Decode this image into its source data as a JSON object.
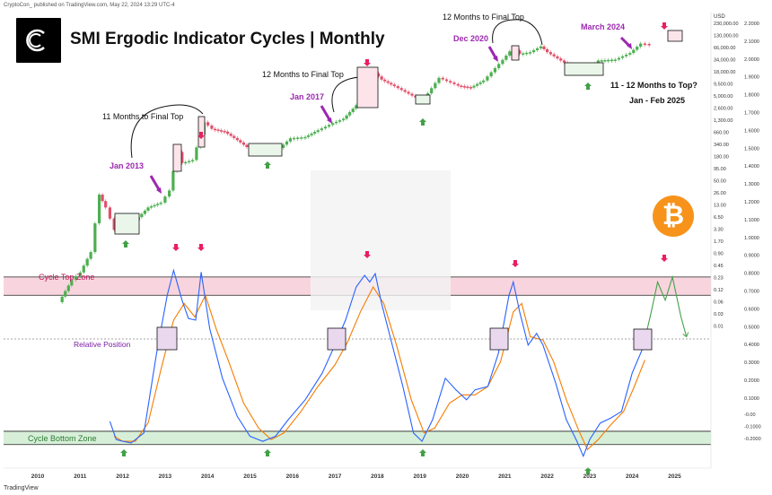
{
  "header_text": "CryptoCon_ published on TradingView.com, May 22, 2024 13:29 UTC-4",
  "footer_text": "TradingView",
  "icons": [
    "cryptocon-logo-icon",
    "bitcoin-icon",
    "cycle-arrow-icon"
  ],
  "colors": {
    "up": "#4caf50",
    "down": "#e0506b",
    "fast": "#2962ff",
    "slow": "#f57c00",
    "projection": "#43a047",
    "top_zone": "#f8d5de",
    "bottom_zone": "#d7efd9",
    "annotation": "#9c27b0",
    "top_arrow": "#e91e63",
    "bottom_arrow": "#43a047"
  },
  "chart_data": {
    "type": "line",
    "title": "SMI Ergodic Indicator Cycles | Monthly",
    "x_ticks": [
      "2010",
      "2011",
      "2012",
      "2013",
      "2014",
      "2015",
      "2016",
      "2017",
      "2018",
      "2019",
      "2020",
      "2021",
      "2022",
      "2023",
      "2024",
      "2025"
    ],
    "price_axis_label": "USD",
    "price_scale": "log",
    "price_ticks": [
      "230,000.00",
      "130,000.00",
      "66,000.00",
      "34,000.00",
      "18,000.00",
      "9,500.00",
      "5,000.00",
      "2,600.00",
      "1,300.00",
      "660.00",
      "340.00",
      "180.00",
      "95.00",
      "50.00",
      "26.00",
      "13.00",
      "6.50",
      "3.30",
      "1.70",
      "0.90",
      "0.45",
      "0.23",
      "0.12",
      "0.06",
      "0.03",
      "0.01"
    ],
    "indicator_ticks": [
      "2.2000",
      "2.1000",
      "2.0000",
      "1.9000",
      "1.8000",
      "1.7000",
      "1.6000",
      "1.5000",
      "1.4000",
      "1.3000",
      "1.2000",
      "1.1000",
      "1.0000",
      "0.9000",
      "0.8000",
      "0.7000",
      "0.6000",
      "0.5000",
      "0.4000",
      "0.3000",
      "0.2000",
      "0.1000",
      "-0.00",
      "-0.1000",
      "-0.2000"
    ],
    "series": [
      {
        "name": "Price",
        "points": [
          [
            2010.5,
            0.06
          ],
          [
            2010.8,
            0.2
          ],
          [
            2011.0,
            0.3
          ],
          [
            2011.25,
            0.9
          ],
          [
            2011.45,
            20
          ],
          [
            2011.6,
            10
          ],
          [
            2011.8,
            3
          ],
          [
            2012.0,
            5
          ],
          [
            2012.3,
            5
          ],
          [
            2012.6,
            10
          ],
          [
            2012.9,
            13
          ],
          [
            2013.1,
            25
          ],
          [
            2013.28,
            200
          ],
          [
            2013.4,
            110
          ],
          [
            2013.65,
            130
          ],
          [
            2013.92,
            1000
          ],
          [
            2014.1,
            700
          ],
          [
            2014.4,
            600
          ],
          [
            2014.7,
            380
          ],
          [
            2015.0,
            230
          ],
          [
            2015.4,
            240
          ],
          [
            2015.7,
            250
          ],
          [
            2015.95,
            420
          ],
          [
            2016.3,
            450
          ],
          [
            2016.6,
            650
          ],
          [
            2016.95,
            950
          ],
          [
            2017.2,
            1200
          ],
          [
            2017.5,
            2500
          ],
          [
            2017.75,
            6000
          ],
          [
            2017.95,
            14000
          ],
          [
            2018.1,
            10000
          ],
          [
            2018.4,
            7000
          ],
          [
            2018.9,
            3800
          ],
          [
            2019.1,
            3600
          ],
          [
            2019.45,
            11000
          ],
          [
            2019.9,
            7200
          ],
          [
            2020.2,
            6500
          ],
          [
            2020.5,
            9500
          ],
          [
            2020.95,
            29000
          ],
          [
            2021.2,
            58000
          ],
          [
            2021.35,
            40000
          ],
          [
            2021.6,
            44000
          ],
          [
            2021.85,
            60000
          ],
          [
            2022.0,
            44000
          ],
          [
            2022.4,
            25000
          ],
          [
            2022.7,
            19000
          ],
          [
            2022.95,
            16500
          ],
          [
            2023.2,
            28000
          ],
          [
            2023.6,
            29500
          ],
          [
            2023.95,
            42000
          ],
          [
            2024.2,
            70000
          ],
          [
            2024.4,
            67000
          ]
        ]
      },
      {
        "name": "SMI fast",
        "points": [
          [
            2011.7,
            -0.01
          ],
          [
            2011.85,
            -0.12
          ],
          [
            2012.0,
            -0.13
          ],
          [
            2012.2,
            -0.14
          ],
          [
            2012.5,
            -0.08
          ],
          [
            2012.8,
            0.4
          ],
          [
            2013.05,
            0.75
          ],
          [
            2013.2,
            0.9
          ],
          [
            2013.4,
            0.72
          ],
          [
            2013.55,
            0.61
          ],
          [
            2013.72,
            0.6
          ],
          [
            2013.85,
            0.89
          ],
          [
            2014.05,
            0.55
          ],
          [
            2014.35,
            0.25
          ],
          [
            2014.7,
            0.02
          ],
          [
            2015.0,
            -0.1
          ],
          [
            2015.3,
            -0.13
          ],
          [
            2015.6,
            -0.1
          ],
          [
            2015.9,
            0.0
          ],
          [
            2016.3,
            0.12
          ],
          [
            2016.7,
            0.28
          ],
          [
            2017.0,
            0.45
          ],
          [
            2017.25,
            0.6
          ],
          [
            2017.5,
            0.8
          ],
          [
            2017.7,
            0.87
          ],
          [
            2017.82,
            0.83
          ],
          [
            2017.95,
            0.88
          ],
          [
            2018.1,
            0.7
          ],
          [
            2018.3,
            0.5
          ],
          [
            2018.6,
            0.2
          ],
          [
            2018.85,
            -0.08
          ],
          [
            2019.05,
            -0.13
          ],
          [
            2019.3,
            0.0
          ],
          [
            2019.6,
            0.25
          ],
          [
            2019.85,
            0.18
          ],
          [
            2020.1,
            0.12
          ],
          [
            2020.3,
            0.18
          ],
          [
            2020.6,
            0.2
          ],
          [
            2020.85,
            0.4
          ],
          [
            2021.1,
            0.75
          ],
          [
            2021.2,
            0.83
          ],
          [
            2021.35,
            0.65
          ],
          [
            2021.55,
            0.45
          ],
          [
            2021.75,
            0.52
          ],
          [
            2021.9,
            0.45
          ],
          [
            2022.2,
            0.22
          ],
          [
            2022.45,
            0.0
          ],
          [
            2022.7,
            -0.13
          ],
          [
            2022.85,
            -0.22
          ],
          [
            2023.0,
            -0.12
          ],
          [
            2023.25,
            -0.02
          ],
          [
            2023.5,
            0.01
          ],
          [
            2023.75,
            0.05
          ],
          [
            2024.0,
            0.28
          ],
          [
            2024.25,
            0.43
          ]
        ]
      },
      {
        "name": "SMI slow",
        "points": [
          [
            2011.8,
            -0.1
          ],
          [
            2012.0,
            -0.13
          ],
          [
            2012.3,
            -0.13
          ],
          [
            2012.6,
            -0.02
          ],
          [
            2012.9,
            0.3
          ],
          [
            2013.2,
            0.6
          ],
          [
            2013.45,
            0.7
          ],
          [
            2013.7,
            0.62
          ],
          [
            2013.95,
            0.75
          ],
          [
            2014.2,
            0.55
          ],
          [
            2014.5,
            0.35
          ],
          [
            2014.85,
            0.1
          ],
          [
            2015.2,
            -0.05
          ],
          [
            2015.5,
            -0.12
          ],
          [
            2015.8,
            -0.08
          ],
          [
            2016.2,
            0.05
          ],
          [
            2016.6,
            0.2
          ],
          [
            2017.0,
            0.33
          ],
          [
            2017.3,
            0.47
          ],
          [
            2017.6,
            0.65
          ],
          [
            2017.9,
            0.8
          ],
          [
            2018.15,
            0.7
          ],
          [
            2018.45,
            0.45
          ],
          [
            2018.8,
            0.12
          ],
          [
            2019.1,
            -0.08
          ],
          [
            2019.35,
            -0.05
          ],
          [
            2019.7,
            0.1
          ],
          [
            2020.0,
            0.15
          ],
          [
            2020.3,
            0.15
          ],
          [
            2020.6,
            0.2
          ],
          [
            2020.9,
            0.35
          ],
          [
            2021.2,
            0.65
          ],
          [
            2021.4,
            0.7
          ],
          [
            2021.6,
            0.5
          ],
          [
            2021.9,
            0.48
          ],
          [
            2022.15,
            0.35
          ],
          [
            2022.45,
            0.12
          ],
          [
            2022.75,
            -0.07
          ],
          [
            2022.95,
            -0.18
          ],
          [
            2023.2,
            -0.12
          ],
          [
            2023.5,
            -0.03
          ],
          [
            2023.8,
            0.05
          ],
          [
            2024.05,
            0.2
          ],
          [
            2024.3,
            0.36
          ]
        ]
      },
      {
        "name": "Projection",
        "points": [
          [
            2024.25,
            0.43
          ],
          [
            2024.45,
            0.65
          ],
          [
            2024.6,
            0.83
          ],
          [
            2024.78,
            0.72
          ],
          [
            2024.95,
            0.86
          ],
          [
            2025.15,
            0.62
          ],
          [
            2025.28,
            0.5
          ]
        ]
      }
    ],
    "zones": [
      {
        "label": "Cycle Top Zone",
        "from": 0.75,
        "to": 0.86
      },
      {
        "label": "Cycle Bottom Zone",
        "from": -0.15,
        "to": -0.07
      }
    ],
    "reference_label": "Relative Position",
    "annotations": [
      {
        "text": "Jan 2013",
        "x": 2013.0,
        "kind": "date"
      },
      {
        "text": "11 Months to Final Top",
        "x": 2013.4,
        "kind": "note"
      },
      {
        "text": "Jan 2017",
        "x": 2017.0,
        "kind": "date"
      },
      {
        "text": "12 Months to Final Top",
        "x": 2017.4,
        "kind": "note"
      },
      {
        "text": "Dec 2020",
        "x": 2020.9,
        "kind": "date"
      },
      {
        "text": "12 Months to Final Top",
        "x": 2021.4,
        "kind": "note"
      },
      {
        "text": "March 2024",
        "x": 2024.2,
        "kind": "date"
      },
      {
        "text": "11 - 12 Months to Top?",
        "x": 2025.0,
        "kind": "note"
      },
      {
        "text": "Jan - Feb 2025",
        "x": 2025.0,
        "kind": "note"
      }
    ]
  }
}
